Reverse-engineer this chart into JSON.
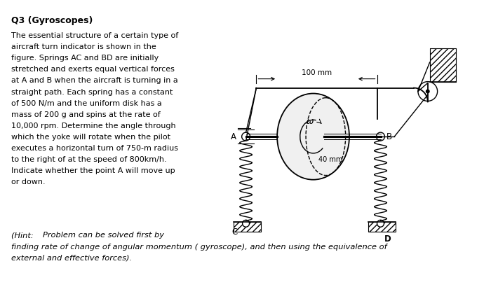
{
  "title": "Q3 (Gyroscopes)",
  "background_color": "#ffffff",
  "text_color": "#000000",
  "body_text": "The essential structure of a certain type of\naircraft turn indicator is shown in the\nfigure. Springs AC and BD are initially\nstretched and exerts equal vertical forces\nat A and B when the aircraft is turning in a\nstraight path. Each spring has a constant\nof 500 N/m and the uniform disk has a\nmass of 200 g and spins at the rate of\n10,000 rpm. Determine the angle through\nwhich the yoke will rotate when the pilot\nexecutes a horizontal turn of 750-m radius\nto the right of at the speed of 800km/h.\nIndicate whether the point A will move up\nor down.",
  "hint_prefix": "(Hint:  ",
  "hint_italic": "Problem can be solved first by\nfinding rate of change of angular momentum ( gyroscope), and then using the equivalence of\nexternal and effective forces).",
  "fig_width": 7.0,
  "fig_height": 4.2,
  "dpi": 100
}
